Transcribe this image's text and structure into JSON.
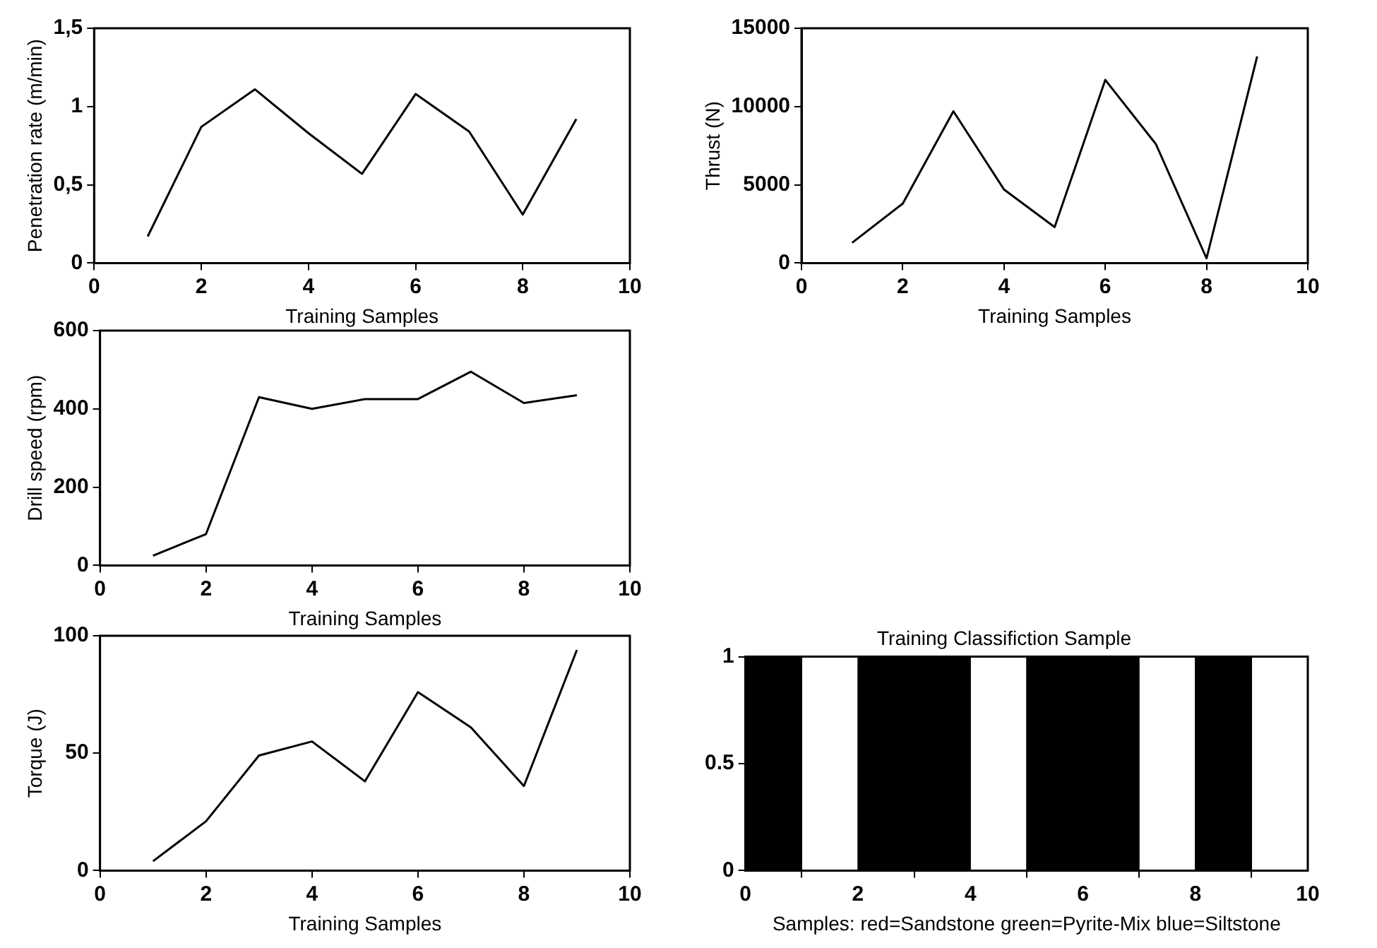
{
  "chart_data": [
    {
      "type": "line",
      "xlabel": "Training Samples",
      "ylabel": "Penetration rate (m/min)",
      "x": [
        1,
        2,
        3,
        4,
        5,
        6,
        7,
        8,
        9
      ],
      "values": [
        0.17,
        0.87,
        1.11,
        0.83,
        0.57,
        1.08,
        0.84,
        0.31,
        0.92
      ],
      "color": "#000000",
      "xlim": [
        0,
        10
      ],
      "xticks": [
        0,
        2,
        4,
        6,
        8,
        10
      ],
      "ylim": [
        0,
        1.5
      ],
      "yticks": [
        0,
        {
          "value": 0.5,
          "label": "0,5"
        },
        1,
        {
          "value": 1.5,
          "label": "1,5"
        }
      ],
      "grid": false
    },
    {
      "type": "line",
      "xlabel": "Training Samples",
      "ylabel": "Thrust (N)",
      "x": [
        1,
        2,
        3,
        4,
        5,
        6,
        7,
        8,
        9
      ],
      "values": [
        1300,
        3800,
        9700,
        4700,
        2300,
        11700,
        7600,
        300,
        13200
      ],
      "color": "#000000",
      "xlim": [
        0,
        10
      ],
      "xticks": [
        0,
        2,
        4,
        6,
        8,
        10
      ],
      "ylim": [
        0,
        15000
      ],
      "yticks": [
        0,
        5000,
        10000,
        15000
      ],
      "grid": false
    },
    {
      "type": "line",
      "xlabel": "Training Samples",
      "ylabel": "Drill speed (rpm)",
      "x": [
        1,
        2,
        3,
        4,
        5,
        6,
        7,
        8,
        9
      ],
      "values": [
        25,
        80,
        430,
        400,
        425,
        425,
        495,
        415,
        435
      ],
      "color": "#000000",
      "xlim": [
        0,
        10
      ],
      "xticks": [
        0,
        2,
        4,
        6,
        8,
        10
      ],
      "ylim": [
        0,
        600
      ],
      "yticks": [
        0,
        200,
        400,
        600
      ],
      "grid": false
    },
    {
      "type": "line",
      "xlabel": "Training Samples",
      "ylabel": "Torque (J)",
      "x": [
        1,
        2,
        3,
        4,
        5,
        6,
        7,
        8,
        9
      ],
      "values": [
        4,
        21,
        49,
        55,
        38,
        76,
        61,
        36,
        94
      ],
      "color": "#000000",
      "xlim": [
        0,
        10
      ],
      "xticks": [
        0,
        2,
        4,
        6,
        8,
        10
      ],
      "ylim": [
        0,
        100
      ],
      "yticks": [
        0,
        50,
        100
      ],
      "grid": false
    },
    {
      "type": "bar",
      "title": "Training Classifiction Sample",
      "xlabel": "Samples: red=Sandstone green=Pyrite-Mix blue=Siltstone",
      "x": [
        0.5,
        1.5,
        2.5,
        3.5,
        4.5,
        5.5,
        6.5,
        7.5,
        8.5
      ],
      "values": [
        1,
        0,
        1,
        1,
        0,
        1,
        1,
        0,
        1
      ],
      "color": "#000000",
      "xlim": [
        0,
        10
      ],
      "xticks": [
        0,
        2,
        4,
        6,
        8,
        10
      ],
      "ylim": [
        0,
        1
      ],
      "yticks": [
        0,
        0.5,
        1
      ],
      "grid": false
    }
  ]
}
